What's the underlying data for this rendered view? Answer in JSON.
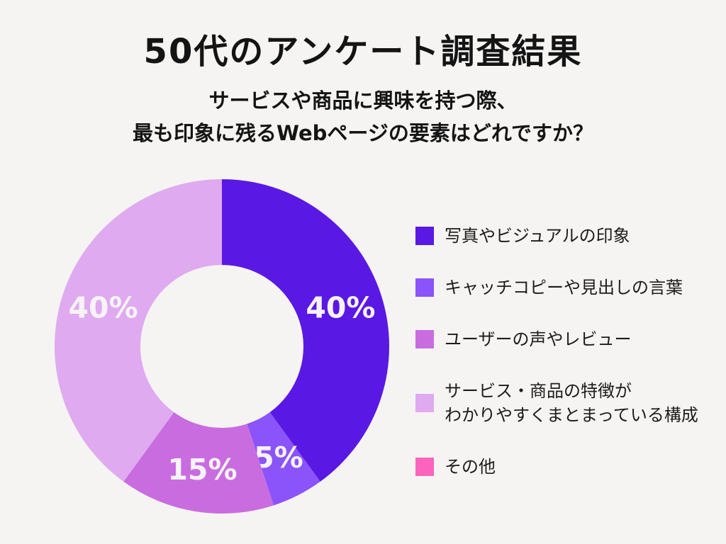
{
  "page": {
    "background_color": "#F5F4F2",
    "title": "50代のアンケート調査結果",
    "subtitle_lines": [
      "サービスや商品に興味を持つ際、",
      "最も印象に残るWebページの要素はどれですか？"
    ],
    "text_color": "#141414"
  },
  "chart_data": {
    "type": "pie",
    "variant": "donut",
    "title": "50代のアンケート調査結果",
    "question": "サービスや商品に興味を持つ際、最も印象に残るWebページの要素はどれですか？",
    "start_angle_deg": 0,
    "direction": "clockwise",
    "unit": "%",
    "categories": [
      "写真やビジュアルの印象",
      "キャッチコピーや見出しの言葉",
      "ユーザーの声やレビュー",
      "サービス・商品の特徴がわかりやすくまとまっている構成",
      "その他"
    ],
    "values": [
      40,
      5,
      15,
      40,
      0
    ],
    "slice_labels": [
      "40%",
      "5%",
      "15%",
      "40%",
      ""
    ],
    "colors": [
      "#5A18E4",
      "#8B53FA",
      "#C96CE0",
      "#DFAAF0",
      "#FA64BE"
    ],
    "slice_label_color": "#F6F3F6",
    "legend_position": "right"
  },
  "legend": {
    "items": [
      {
        "lines": [
          "写真やビジュアルの印象"
        ],
        "color": "#5A18E4"
      },
      {
        "lines": [
          "キャッチコピーや見出しの言葉"
        ],
        "color": "#8B53FA"
      },
      {
        "lines": [
          "ユーザーの声やレビュー"
        ],
        "color": "#C96CE0"
      },
      {
        "lines": [
          "サービス・商品の特徴が",
          "わかりやすくまとまっている構成"
        ],
        "color": "#DFAAF0"
      },
      {
        "lines": [
          "その他"
        ],
        "color": "#FA64BE"
      }
    ]
  }
}
